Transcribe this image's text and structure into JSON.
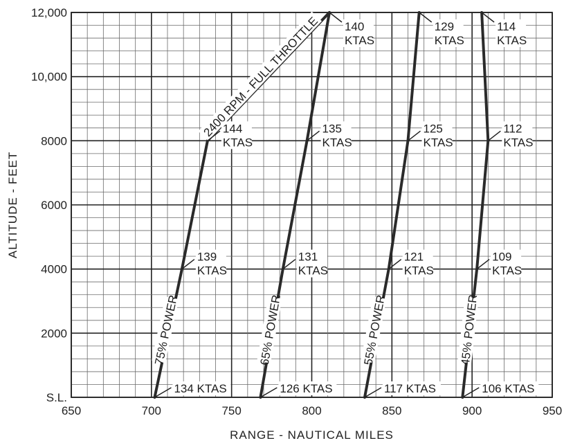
{
  "chart_data": {
    "type": "line",
    "title": "",
    "xlabel": "RANGE - NAUTICAL MILES",
    "ylabel": "ALTITUDE - FEET",
    "xlim": [
      650,
      950
    ],
    "ylim": [
      0,
      12000
    ],
    "x_ticks": [
      {
        "value": 650,
        "label": "650"
      },
      {
        "value": 700,
        "label": "700"
      },
      {
        "value": 750,
        "label": "750"
      },
      {
        "value": 800,
        "label": "800"
      },
      {
        "value": 850,
        "label": "850"
      },
      {
        "value": 900,
        "label": "900"
      },
      {
        "value": 950,
        "label": "950"
      }
    ],
    "y_ticks": [
      {
        "value": 0,
        "label": "S.L."
      },
      {
        "value": 2000,
        "label": "2000"
      },
      {
        "value": 4000,
        "label": "4000"
      },
      {
        "value": 6000,
        "label": "6000"
      },
      {
        "value": 8000,
        "label": "8000"
      },
      {
        "value": 10000,
        "label": "10,000"
      },
      {
        "value": 12000,
        "label": "12,000"
      }
    ],
    "grid": true,
    "series": [
      {
        "name": "2400 RPM - FULL THROTTLE",
        "points": [
          {
            "x": 735,
            "y": 8000
          },
          {
            "x": 811,
            "y": 12000
          }
        ],
        "label_at": {
          "x": 768,
          "y": 10000
        }
      },
      {
        "name": "75% POWER",
        "points": [
          {
            "x": 702,
            "y": 0
          },
          {
            "x": 719,
            "y": 4000
          },
          {
            "x": 735,
            "y": 8000
          }
        ],
        "label_at": {
          "x": 709,
          "y": 2100
        }
      },
      {
        "name": "65% POWER",
        "points": [
          {
            "x": 768,
            "y": 0
          },
          {
            "x": 782,
            "y": 4000
          },
          {
            "x": 797,
            "y": 8000
          },
          {
            "x": 811,
            "y": 12000
          }
        ],
        "label_at": {
          "x": 774,
          "y": 2100
        }
      },
      {
        "name": "55% POWER",
        "points": [
          {
            "x": 833,
            "y": 0
          },
          {
            "x": 848,
            "y": 4000
          },
          {
            "x": 860,
            "y": 8000
          },
          {
            "x": 867,
            "y": 12000
          }
        ],
        "label_at": {
          "x": 839,
          "y": 2100
        }
      },
      {
        "name": "45% POWER",
        "points": [
          {
            "x": 894,
            "y": 0
          },
          {
            "x": 903,
            "y": 4000
          },
          {
            "x": 910,
            "y": 8000
          },
          {
            "x": 906,
            "y": 12000
          }
        ],
        "label_at": {
          "x": 898,
          "y": 2100
        }
      }
    ],
    "annotations": [
      {
        "lines": [
          "140",
          "KTAS"
        ],
        "x": 811,
        "y": 12000
      },
      {
        "lines": [
          "129",
          "KTAS"
        ],
        "x": 867,
        "y": 12000
      },
      {
        "lines": [
          "114",
          "KTAS"
        ],
        "x": 906,
        "y": 12000
      },
      {
        "lines": [
          "144",
          "KTAS"
        ],
        "x": 735,
        "y": 8000
      },
      {
        "lines": [
          "135",
          "KTAS"
        ],
        "x": 797,
        "y": 8000
      },
      {
        "lines": [
          "125",
          "KTAS"
        ],
        "x": 860,
        "y": 8000
      },
      {
        "lines": [
          "112",
          "KTAS"
        ],
        "x": 910,
        "y": 8000
      },
      {
        "lines": [
          "139",
          "KTAS"
        ],
        "x": 719,
        "y": 4000
      },
      {
        "lines": [
          "131",
          "KTAS"
        ],
        "x": 782,
        "y": 4000
      },
      {
        "lines": [
          "121",
          "KTAS"
        ],
        "x": 848,
        "y": 4000
      },
      {
        "lines": [
          "109",
          "KTAS"
        ],
        "x": 903,
        "y": 4000
      },
      {
        "lines": [
          "134 KTAS"
        ],
        "x": 702,
        "y": 0
      },
      {
        "lines": [
          "126 KTAS"
        ],
        "x": 768,
        "y": 0
      },
      {
        "lines": [
          "117 KTAS"
        ],
        "x": 833,
        "y": 0
      },
      {
        "lines": [
          "106 KTAS"
        ],
        "x": 894,
        "y": 0
      }
    ]
  }
}
